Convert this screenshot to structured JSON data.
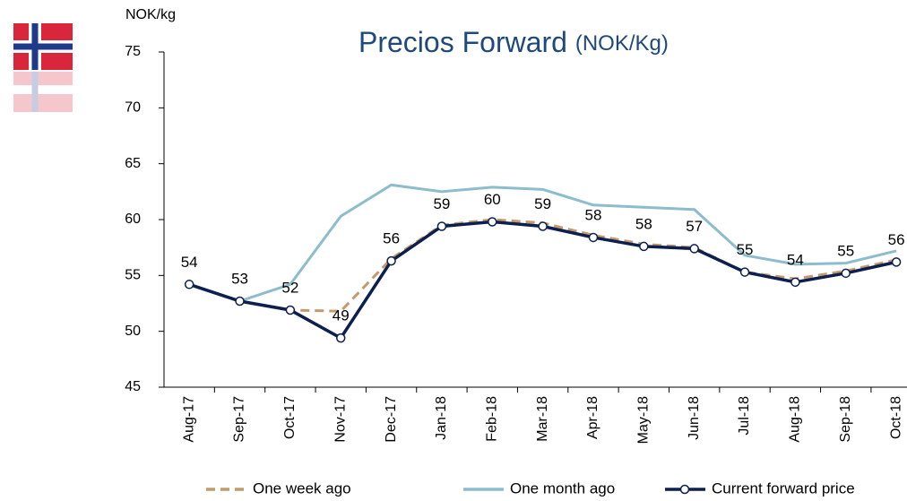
{
  "chart_data": {
    "type": "line",
    "title": "Precios Forward",
    "subtitle": "(NOK/Kg)",
    "y_label": "NOK/kg",
    "categories": [
      "Aug-17",
      "Sep-17",
      "Oct-17",
      "Nov-17",
      "Dec-17",
      "Jan-18",
      "Feb-18",
      "Mar-18",
      "Apr-18",
      "May-18",
      "Jun-18",
      "Jul-18",
      "Aug-18",
      "Sep-18",
      "Oct-18"
    ],
    "series": [
      {
        "name": "One week ago",
        "color": "#c49a6c",
        "dashed": true,
        "values": [
          54.2,
          52.7,
          51.9,
          51.8,
          56.5,
          59.5,
          60.0,
          59.7,
          58.6,
          57.8,
          57.5,
          55.3,
          54.7,
          55.4,
          56.4
        ]
      },
      {
        "name": "One month ago",
        "color": "#8dbdcc",
        "values": [
          null,
          52.7,
          54.2,
          60.3,
          63.1,
          62.5,
          62.9,
          62.7,
          61.3,
          61.1,
          60.9,
          56.8,
          56.0,
          56.1,
          57.2
        ]
      },
      {
        "name": "Current forward price",
        "color": "#0d1f4f",
        "markers": true,
        "values": [
          54.2,
          52.7,
          51.9,
          49.4,
          56.3,
          59.4,
          59.8,
          59.4,
          58.4,
          57.6,
          57.4,
          55.3,
          54.4,
          55.2,
          56.2
        ],
        "value_labels": [
          "54",
          "53",
          "52",
          "49",
          "56",
          "59",
          "60",
          "59",
          "58",
          "58",
          "57",
          "55",
          "54",
          "55",
          "56"
        ]
      }
    ],
    "ylim": [
      45,
      75
    ],
    "yticks": [
      45,
      50,
      55,
      60,
      65,
      70,
      75
    ],
    "grid": false
  }
}
